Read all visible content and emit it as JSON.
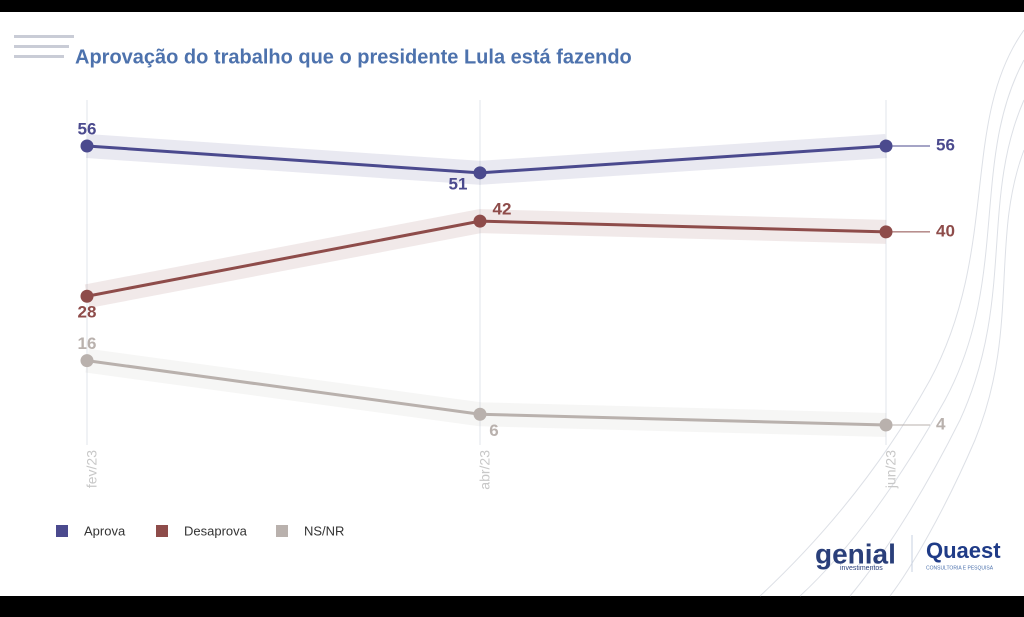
{
  "chart_data": {
    "type": "line",
    "title": "Aprovação do trabalho que o presidente Lula está fazendo",
    "categories": [
      "fev/23",
      "abr/23",
      "jun/23"
    ],
    "series": [
      {
        "name": "Aprova",
        "color": "#4b4a8e",
        "values": [
          56,
          51,
          56
        ]
      },
      {
        "name": "Desaprova",
        "color": "#8e4c4a",
        "values": [
          28,
          42,
          40
        ]
      },
      {
        "name": "NS/NR",
        "color": "#b9b1ad",
        "values": [
          16,
          6,
          4
        ]
      }
    ],
    "grid": true,
    "legend": "bottom-left"
  },
  "logos": {
    "genial": "genial",
    "genial_sub": "investimentos",
    "quaest": "Quaest",
    "quaest_sub": "CONSULTORIA E PESQUISA"
  }
}
